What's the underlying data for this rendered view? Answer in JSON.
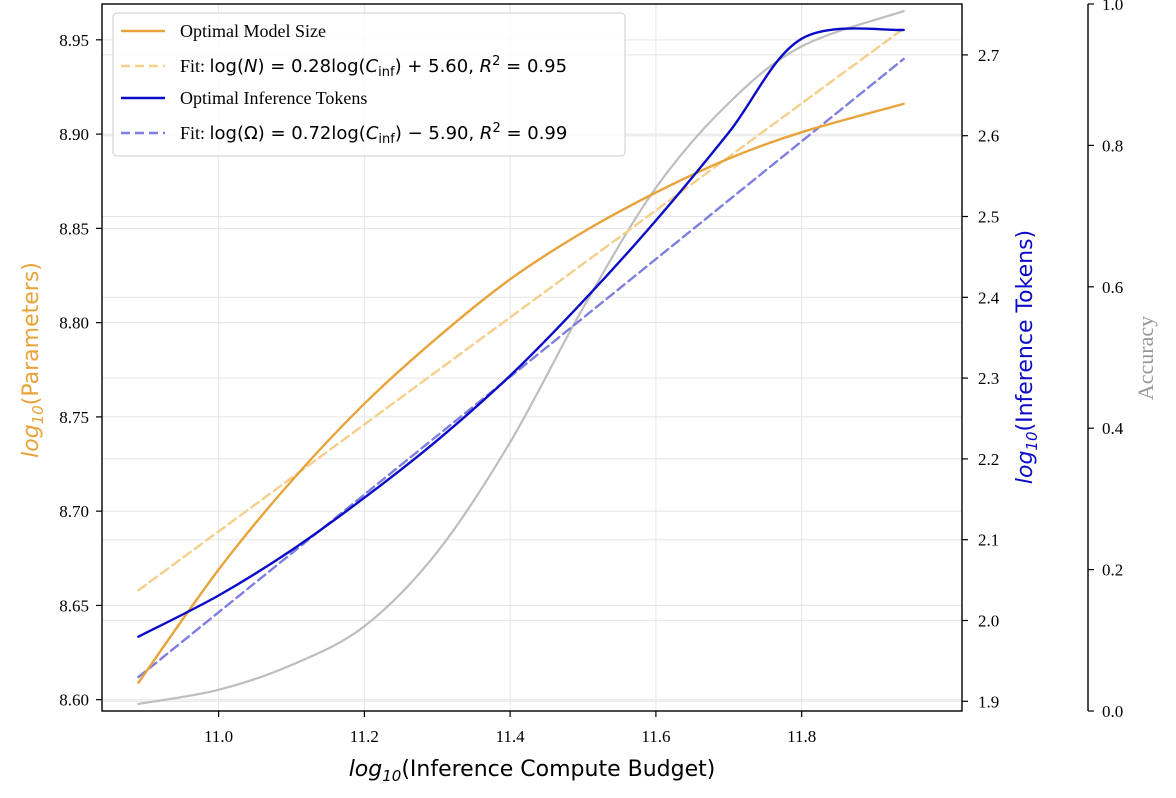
{
  "chart_data": {
    "type": "line",
    "xlabel": "log10(Inference Compute Budget)",
    "ylabel_left": "log10(Parameters)",
    "ylabel_right": "log10(Inference Tokens)",
    "ylabel_right2": "Accuracy",
    "xlim": [
      10.84,
      12.02
    ],
    "ylim_left": [
      8.594,
      8.969
    ],
    "ylim_right": [
      1.888,
      2.763
    ],
    "ylim_right2": [
      0.0,
      1.0
    ],
    "x_ticks": [
      "11.0",
      "11.2",
      "11.4",
      "11.6",
      "11.8"
    ],
    "y_left_ticks": [
      "8.60",
      "8.65",
      "8.70",
      "8.75",
      "8.80",
      "8.85",
      "8.90",
      "8.95"
    ],
    "y_right_ticks": [
      "1.9",
      "2.0",
      "2.1",
      "2.2",
      "2.3",
      "2.4",
      "2.5",
      "2.6",
      "2.7"
    ],
    "y_right2_ticks": [
      "0.0",
      "0.2",
      "0.4",
      "0.6",
      "0.8",
      "1.0"
    ],
    "grid": true,
    "legend_position": "top-left",
    "legend": [
      "Optimal Model Size",
      "Fit: log(N) = 0.28log(Cinf) + 5.60, R² = 0.95",
      "Optimal Inference Tokens",
      "Fit: log(Ω) = 0.72log(Cinf) − 5.90, R² = 0.99"
    ],
    "colors": {
      "model_size": "#E8A33A",
      "model_size_fit": "#F5CF8C",
      "tokens": "#0B0BC8",
      "tokens_fit": "#7F7FDF",
      "accuracy": "#BEBEBE",
      "grid": "#E5E5E5"
    },
    "series": [
      {
        "name": "Optimal Model Size",
        "axis": "left",
        "x": [
          10.89,
          11.0,
          11.1,
          11.2,
          11.3,
          11.4,
          11.5,
          11.6,
          11.7,
          11.8,
          11.94
        ],
        "values": [
          8.609,
          8.669,
          8.716,
          8.757,
          8.792,
          8.823,
          8.848,
          8.869,
          8.887,
          8.901,
          8.916
        ]
      },
      {
        "name": "Fit: log(N) = 0.28log(Cinf) + 5.60, R² = 0.95",
        "axis": "left",
        "x": [
          10.89,
          11.94
        ],
        "values": [
          8.658,
          8.956
        ]
      },
      {
        "name": "Optimal Inference Tokens",
        "axis": "right",
        "x": [
          10.89,
          11.0,
          11.1,
          11.2,
          11.3,
          11.4,
          11.5,
          11.6,
          11.7,
          11.8,
          11.94
        ],
        "values": [
          1.98,
          2.031,
          2.087,
          2.152,
          2.223,
          2.303,
          2.395,
          2.495,
          2.604,
          2.72,
          2.731
        ]
      },
      {
        "name": "Fit: log(Ω) = 0.72log(Cinf) − 5.90, R² = 0.99",
        "axis": "right",
        "x": [
          10.89,
          11.94
        ],
        "values": [
          1.93,
          2.695
        ]
      },
      {
        "name": "Accuracy",
        "axis": "right2",
        "x": [
          10.89,
          11.0,
          11.1,
          11.2,
          11.3,
          11.4,
          11.5,
          11.6,
          11.7,
          11.8,
          11.94
        ],
        "values": [
          0.01,
          0.03,
          0.065,
          0.12,
          0.225,
          0.38,
          0.57,
          0.74,
          0.86,
          0.94,
          0.99
        ]
      }
    ]
  }
}
